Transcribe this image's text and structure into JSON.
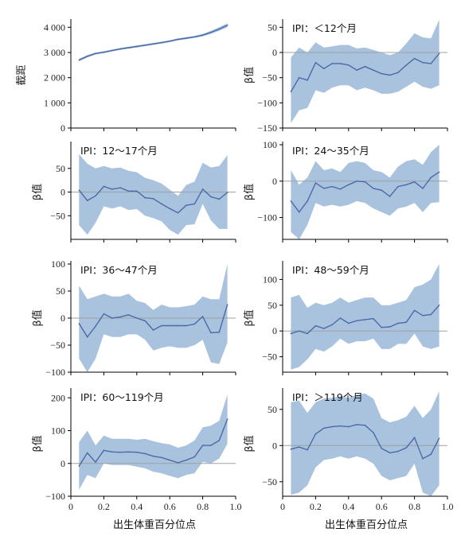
{
  "style": {
    "band": "#a9c3df",
    "line": "#4a6aa8",
    "zero": "#a0a0a0",
    "axis": "#000000"
  },
  "xlabel": "出生体重百分位点",
  "xticks": [
    "0",
    "0.2",
    "0.4",
    "0.6",
    "0.8",
    "1.0"
  ],
  "chart_data": [
    {
      "type": "line",
      "title": "",
      "ylabel": "截距",
      "ylim": [
        0,
        4200
      ],
      "yticks": [
        "0",
        "1 000",
        "2 000",
        "3 000",
        "4 000"
      ],
      "ytick_values": [
        0,
        1000,
        2000,
        3000,
        4000
      ],
      "x": [
        0.05,
        0.1,
        0.15,
        0.2,
        0.25,
        0.3,
        0.35,
        0.4,
        0.45,
        0.5,
        0.55,
        0.6,
        0.65,
        0.7,
        0.75,
        0.8,
        0.85,
        0.9,
        0.95
      ],
      "series": [
        {
          "values": [
            2700,
            2850,
            2960,
            3010,
            3080,
            3140,
            3190,
            3240,
            3290,
            3340,
            3390,
            3450,
            3520,
            3570,
            3620,
            3690,
            3800,
            3930,
            4080
          ],
          "lower": [
            2650,
            2800,
            2920,
            2970,
            3040,
            3100,
            3150,
            3200,
            3250,
            3300,
            3350,
            3410,
            3480,
            3530,
            3580,
            3640,
            3740,
            3860,
            4000
          ],
          "upper": [
            2750,
            2900,
            3000,
            3050,
            3120,
            3180,
            3230,
            3280,
            3330,
            3380,
            3430,
            3490,
            3560,
            3610,
            3660,
            3740,
            3860,
            4000,
            4160
          ]
        }
      ],
      "zero_line": false
    },
    {
      "type": "line",
      "title": "IPI：＜12个月",
      "ylabel": "β值",
      "ylim": [
        -150,
        60
      ],
      "yticks": [
        "−150",
        "−100",
        "−50",
        "0",
        "50"
      ],
      "ytick_values": [
        -150,
        -100,
        -50,
        0,
        50
      ],
      "x": [
        0.05,
        0.1,
        0.15,
        0.2,
        0.25,
        0.3,
        0.35,
        0.4,
        0.45,
        0.5,
        0.55,
        0.6,
        0.65,
        0.7,
        0.75,
        0.8,
        0.85,
        0.9,
        0.95
      ],
      "series": [
        {
          "values": [
            -78,
            -50,
            -55,
            -20,
            -32,
            -22,
            -22,
            -25,
            -35,
            -28,
            -35,
            -42,
            -45,
            -40,
            -25,
            -12,
            -20,
            -22,
            -2
          ],
          "lower": [
            -140,
            -115,
            -110,
            -75,
            -80,
            -70,
            -65,
            -65,
            -75,
            -70,
            -75,
            -82,
            -82,
            -78,
            -68,
            -58,
            -68,
            -72,
            -65
          ],
          "upper": [
            -10,
            10,
            0,
            20,
            10,
            12,
            15,
            15,
            8,
            10,
            5,
            0,
            -5,
            0,
            18,
            38,
            30,
            28,
            65
          ]
        }
      ],
      "zero_line": true
    },
    {
      "type": "line",
      "title": "IPI：12～17个月",
      "ylabel": "β值",
      "ylim": [
        -100,
        100
      ],
      "yticks": [
        "−50",
        "0",
        "50"
      ],
      "ytick_values": [
        -50,
        0,
        50
      ],
      "x": [
        0.05,
        0.1,
        0.15,
        0.2,
        0.25,
        0.3,
        0.35,
        0.4,
        0.45,
        0.5,
        0.55,
        0.6,
        0.65,
        0.7,
        0.75,
        0.8,
        0.85,
        0.9,
        0.95
      ],
      "series": [
        {
          "values": [
            4,
            -18,
            -8,
            12,
            6,
            9,
            2,
            2,
            -12,
            -14,
            -25,
            -35,
            -44,
            -28,
            -25,
            6,
            -10,
            -15,
            -1
          ],
          "lower": [
            -70,
            -90,
            -65,
            -30,
            -35,
            -30,
            -38,
            -36,
            -50,
            -55,
            -62,
            -80,
            -90,
            -70,
            -68,
            -25,
            -60,
            -78,
            -78
          ],
          "upper": [
            80,
            60,
            50,
            55,
            50,
            52,
            45,
            42,
            30,
            25,
            18,
            5,
            -8,
            15,
            22,
            62,
            52,
            55,
            78
          ]
        }
      ],
      "zero_line": true
    },
    {
      "type": "line",
      "title": "IPI：24～35个月",
      "ylabel": "β值",
      "ylim": [
        -160,
        100
      ],
      "yticks": [
        "−100",
        "0",
        "100"
      ],
      "ytick_values": [
        -100,
        0,
        100
      ],
      "x": [
        0.05,
        0.1,
        0.15,
        0.2,
        0.25,
        0.3,
        0.35,
        0.4,
        0.45,
        0.5,
        0.55,
        0.6,
        0.65,
        0.7,
        0.75,
        0.8,
        0.85,
        0.9,
        0.95
      ],
      "series": [
        {
          "values": [
            -55,
            -85,
            -55,
            -5,
            -20,
            -15,
            -22,
            -10,
            0,
            -2,
            -20,
            -25,
            -42,
            -15,
            -10,
            -2,
            -20,
            10,
            25
          ],
          "lower": [
            -140,
            -160,
            -120,
            -60,
            -70,
            -65,
            -70,
            -65,
            -55,
            -60,
            -75,
            -85,
            -95,
            -75,
            -70,
            -60,
            -85,
            -60,
            -58
          ],
          "upper": [
            30,
            -10,
            10,
            55,
            30,
            35,
            25,
            50,
            55,
            50,
            30,
            25,
            10,
            40,
            55,
            60,
            45,
            80,
            100
          ]
        }
      ],
      "zero_line": true
    },
    {
      "type": "line",
      "title": "IPI：36～47个月",
      "ylabel": "β值",
      "ylim": [
        -100,
        100
      ],
      "yticks": [
        "−100",
        "−50",
        "0",
        "50",
        "100"
      ],
      "ytick_values": [
        -100,
        -50,
        0,
        50,
        100
      ],
      "x": [
        0.05,
        0.1,
        0.15,
        0.2,
        0.25,
        0.3,
        0.35,
        0.4,
        0.45,
        0.5,
        0.55,
        0.6,
        0.65,
        0.7,
        0.75,
        0.8,
        0.85,
        0.9,
        0.95
      ],
      "series": [
        {
          "values": [
            -10,
            -35,
            -15,
            8,
            0,
            2,
            6,
            0,
            -5,
            -22,
            -14,
            -14,
            -14,
            -14,
            -11,
            3,
            -27,
            -26,
            25
          ],
          "lower": [
            -75,
            -100,
            -75,
            -30,
            -35,
            -35,
            -30,
            -30,
            -40,
            -60,
            -55,
            -52,
            -55,
            -55,
            -50,
            -40,
            -82,
            -85,
            -45
          ],
          "upper": [
            60,
            35,
            40,
            45,
            40,
            40,
            45,
            32,
            28,
            15,
            25,
            20,
            20,
            22,
            25,
            40,
            35,
            35,
            100
          ]
        }
      ],
      "zero_line": true
    },
    {
      "type": "line",
      "title": "IPI：48～59个月",
      "ylabel": "β值",
      "ylim": [
        -80,
        130
      ],
      "yticks": [
        "−50",
        "0",
        "50",
        "100"
      ],
      "ytick_values": [
        -50,
        0,
        50,
        100
      ],
      "x": [
        0.05,
        0.1,
        0.15,
        0.2,
        0.25,
        0.3,
        0.35,
        0.4,
        0.45,
        0.5,
        0.55,
        0.6,
        0.65,
        0.7,
        0.75,
        0.8,
        0.85,
        0.9,
        0.95
      ],
      "series": [
        {
          "values": [
            -5,
            0,
            -5,
            10,
            5,
            12,
            25,
            15,
            20,
            22,
            24,
            7,
            8,
            15,
            17,
            40,
            30,
            32,
            50
          ],
          "lower": [
            -75,
            -70,
            -55,
            -35,
            -40,
            -30,
            -15,
            -25,
            -20,
            -20,
            -15,
            -35,
            -35,
            -25,
            -25,
            -5,
            -30,
            -35,
            -30
          ],
          "upper": [
            65,
            70,
            45,
            55,
            50,
            55,
            65,
            55,
            60,
            65,
            65,
            50,
            50,
            55,
            60,
            85,
            90,
            100,
            130
          ]
        }
      ],
      "zero_line": true
    },
    {
      "type": "line",
      "title": "IPI：60～119个月",
      "ylabel": "β值",
      "ylim": [
        -100,
        220
      ],
      "yticks": [
        "−100",
        "0",
        "100",
        "200"
      ],
      "ytick_values": [
        -100,
        0,
        100,
        200
      ],
      "x": [
        0.05,
        0.1,
        0.15,
        0.2,
        0.25,
        0.3,
        0.35,
        0.4,
        0.45,
        0.5,
        0.55,
        0.6,
        0.65,
        0.7,
        0.75,
        0.8,
        0.85,
        0.9,
        0.95
      ],
      "series": [
        {
          "values": [
            -8,
            32,
            4,
            40,
            35,
            34,
            35,
            34,
            30,
            22,
            18,
            10,
            2,
            10,
            20,
            55,
            55,
            70,
            135
          ],
          "lower": [
            -80,
            -35,
            -45,
            0,
            -5,
            -5,
            -5,
            -10,
            -15,
            -25,
            -30,
            -38,
            -45,
            -35,
            -30,
            5,
            0,
            15,
            60
          ],
          "upper": [
            65,
            100,
            55,
            85,
            75,
            75,
            75,
            72,
            75,
            68,
            62,
            58,
            48,
            55,
            70,
            110,
            115,
            130,
            210
          ]
        }
      ],
      "zero_line": true
    },
    {
      "type": "line",
      "title": "IPI：＞119个月",
      "ylabel": "β值",
      "ylim": [
        -70,
        75
      ],
      "yticks": [
        "−50",
        "0",
        "50"
      ],
      "ytick_values": [
        -50,
        0,
        50
      ],
      "x": [
        0.05,
        0.1,
        0.15,
        0.2,
        0.25,
        0.3,
        0.35,
        0.4,
        0.45,
        0.5,
        0.55,
        0.6,
        0.65,
        0.7,
        0.75,
        0.8,
        0.85,
        0.9,
        0.95
      ],
      "series": [
        {
          "values": [
            -5,
            -2,
            -6,
            16,
            24,
            26,
            27,
            26,
            29,
            28,
            18,
            -4,
            -10,
            -8,
            -3,
            11,
            -18,
            -12,
            10
          ],
          "lower": [
            -68,
            -65,
            -55,
            -30,
            -20,
            -18,
            -15,
            -18,
            -15,
            -18,
            -25,
            -42,
            -48,
            -45,
            -42,
            -25,
            -65,
            -70,
            -55
          ],
          "upper": [
            60,
            62,
            45,
            60,
            65,
            66,
            68,
            66,
            70,
            72,
            65,
            38,
            32,
            35,
            40,
            55,
            38,
            50,
            75
          ]
        }
      ],
      "zero_line": true
    }
  ]
}
